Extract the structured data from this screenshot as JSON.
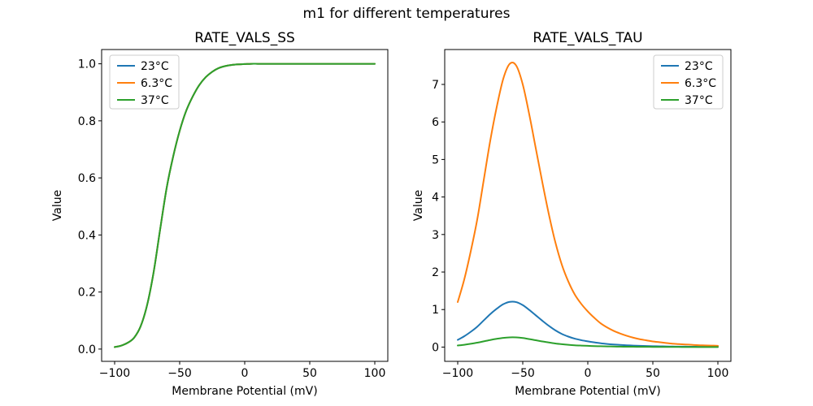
{
  "figure": {
    "suptitle": "m1 for different temperatures",
    "background": "#ffffff",
    "text_color": "#000000"
  },
  "chart_data": [
    {
      "type": "line",
      "title": "RATE_VALS_SS",
      "xlabel": "Membrane Potential (mV)",
      "ylabel": "Value",
      "grid": false,
      "xlim": [
        -110,
        110
      ],
      "ylim": [
        -0.043,
        1.05
      ],
      "xtick_values": [
        -100,
        -50,
        0,
        50,
        100
      ],
      "xtick_labels": [
        "−100",
        "−50",
        "0",
        "50",
        "100"
      ],
      "ytick_values": [
        0.0,
        0.2,
        0.4,
        0.6,
        0.8,
        1.0
      ],
      "ytick_labels": [
        "0.0",
        "0.2",
        "0.4",
        "0.6",
        "0.8",
        "1.0"
      ],
      "legend": {
        "position": "upper-left",
        "entries": [
          "23°C",
          "6.3°C",
          "37°C"
        ]
      },
      "x": [
        -100,
        -95,
        -90,
        -85,
        -80,
        -75,
        -70,
        -65,
        -60,
        -55,
        -50,
        -45,
        -40,
        -35,
        -30,
        -25,
        -20,
        -15,
        -10,
        -5,
        0,
        5,
        10,
        15,
        20,
        25,
        30,
        35,
        40,
        45,
        50,
        55,
        60,
        65,
        70,
        75,
        80,
        85,
        90,
        95,
        100
      ],
      "series": [
        {
          "name": "23°C",
          "color": "#1f77b4",
          "values": [
            0.007,
            0.012,
            0.022,
            0.04,
            0.08,
            0.155,
            0.27,
            0.42,
            0.565,
            0.675,
            0.765,
            0.835,
            0.885,
            0.925,
            0.953,
            0.972,
            0.985,
            0.992,
            0.996,
            0.998,
            0.999,
            1.0,
            1.0,
            1.0,
            1.0,
            1.0,
            1.0,
            1.0,
            1.0,
            1.0,
            1.0,
            1.0,
            1.0,
            1.0,
            1.0,
            1.0,
            1.0,
            1.0,
            1.0,
            1.0,
            1.0
          ]
        },
        {
          "name": "6.3°C",
          "color": "#ff7f0e",
          "values": [
            0.007,
            0.012,
            0.022,
            0.04,
            0.08,
            0.155,
            0.27,
            0.42,
            0.565,
            0.675,
            0.765,
            0.835,
            0.885,
            0.925,
            0.953,
            0.972,
            0.985,
            0.992,
            0.996,
            0.998,
            0.999,
            1.0,
            1.0,
            1.0,
            1.0,
            1.0,
            1.0,
            1.0,
            1.0,
            1.0,
            1.0,
            1.0,
            1.0,
            1.0,
            1.0,
            1.0,
            1.0,
            1.0,
            1.0,
            1.0,
            1.0
          ]
        },
        {
          "name": "37°C",
          "color": "#2ca02c",
          "values": [
            0.007,
            0.012,
            0.022,
            0.04,
            0.08,
            0.155,
            0.27,
            0.42,
            0.565,
            0.675,
            0.765,
            0.835,
            0.885,
            0.925,
            0.953,
            0.972,
            0.985,
            0.992,
            0.996,
            0.998,
            0.999,
            1.0,
            1.0,
            1.0,
            1.0,
            1.0,
            1.0,
            1.0,
            1.0,
            1.0,
            1.0,
            1.0,
            1.0,
            1.0,
            1.0,
            1.0,
            1.0,
            1.0,
            1.0,
            1.0,
            1.0
          ]
        }
      ]
    },
    {
      "type": "line",
      "title": "RATE_VALS_TAU",
      "xlabel": "Membrane Potential (mV)",
      "ylabel": "Value",
      "grid": false,
      "xlim": [
        -110,
        110
      ],
      "ylim": [
        -0.38,
        7.93
      ],
      "xtick_values": [
        -100,
        -50,
        0,
        50,
        100
      ],
      "xtick_labels": [
        "−100",
        "−50",
        "0",
        "50",
        "100"
      ],
      "ytick_values": [
        0,
        1,
        2,
        3,
        4,
        5,
        6,
        7
      ],
      "ytick_labels": [
        "0",
        "1",
        "2",
        "3",
        "4",
        "5",
        "6",
        "7"
      ],
      "legend": {
        "position": "upper-right",
        "entries": [
          "23°C",
          "6.3°C",
          "37°C"
        ]
      },
      "x": [
        -100,
        -95,
        -90,
        -85,
        -80,
        -75,
        -70,
        -65,
        -60,
        -55,
        -50,
        -45,
        -40,
        -35,
        -30,
        -25,
        -20,
        -15,
        -10,
        -5,
        0,
        5,
        10,
        15,
        20,
        25,
        30,
        35,
        40,
        45,
        50,
        55,
        60,
        65,
        70,
        75,
        80,
        85,
        90,
        95,
        100
      ],
      "series": [
        {
          "name": "23°C",
          "color": "#1f77b4",
          "values": [
            0.192,
            0.288,
            0.407,
            0.543,
            0.711,
            0.879,
            1.022,
            1.142,
            1.206,
            1.198,
            1.118,
            0.99,
            0.847,
            0.703,
            0.567,
            0.447,
            0.351,
            0.28,
            0.224,
            0.184,
            0.152,
            0.125,
            0.101,
            0.083,
            0.069,
            0.058,
            0.048,
            0.04,
            0.034,
            0.029,
            0.024,
            0.021,
            0.018,
            0.014,
            0.013,
            0.011,
            0.01,
            0.008,
            0.007,
            0.006,
            0.006
          ]
        },
        {
          "name": "6.3°C",
          "color": "#ff7f0e",
          "values": [
            1.2,
            1.8,
            2.55,
            3.4,
            4.45,
            5.5,
            6.4,
            7.15,
            7.55,
            7.5,
            7.0,
            6.2,
            5.3,
            4.4,
            3.55,
            2.8,
            2.2,
            1.75,
            1.4,
            1.15,
            0.95,
            0.78,
            0.63,
            0.52,
            0.43,
            0.36,
            0.3,
            0.25,
            0.21,
            0.18,
            0.15,
            0.13,
            0.11,
            0.09,
            0.08,
            0.07,
            0.06,
            0.05,
            0.045,
            0.04,
            0.035
          ]
        },
        {
          "name": "37°C",
          "color": "#2ca02c",
          "values": [
            0.041,
            0.062,
            0.088,
            0.117,
            0.153,
            0.189,
            0.22,
            0.246,
            0.259,
            0.258,
            0.241,
            0.213,
            0.182,
            0.151,
            0.122,
            0.096,
            0.076,
            0.06,
            0.048,
            0.04,
            0.033,
            0.027,
            0.022,
            0.018,
            0.015,
            0.012,
            0.01,
            0.009,
            0.007,
            0.006,
            0.005,
            0.004,
            0.004,
            0.003,
            0.003,
            0.002,
            0.002,
            0.002,
            0.002,
            0.001,
            0.001
          ]
        }
      ]
    }
  ]
}
